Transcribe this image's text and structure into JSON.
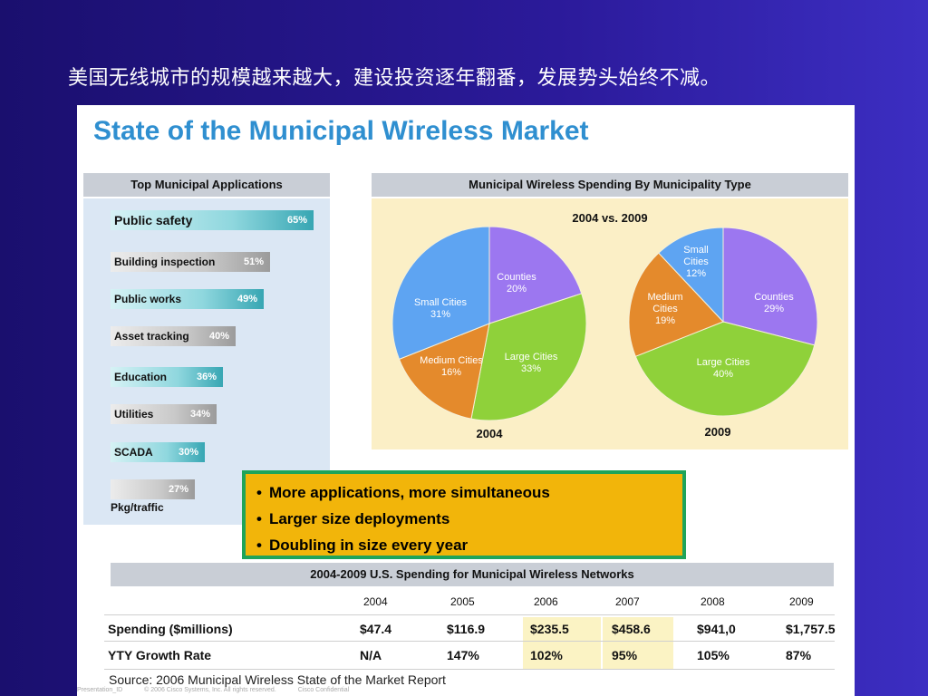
{
  "caption": "美国无线城市的规模越来越大，建设投资逐年翻番，发展势头始终不减。",
  "title": "State of the Municipal Wireless Market",
  "apps": {
    "heading": "Top Municipal Applications",
    "items": [
      {
        "label": "Public safety",
        "pct": "65%",
        "value": 65,
        "color": "teal"
      },
      {
        "label": "Building inspection",
        "pct": "51%",
        "value": 51,
        "color": "gray"
      },
      {
        "label": "Public works",
        "pct": "49%",
        "value": 49,
        "color": "teal"
      },
      {
        "label": "Asset tracking",
        "pct": "40%",
        "value": 40,
        "color": "gray"
      },
      {
        "label": "Education",
        "pct": "36%",
        "value": 36,
        "color": "teal"
      },
      {
        "label": "Utilities",
        "pct": "34%",
        "value": 34,
        "color": "gray"
      },
      {
        "label": "SCADA",
        "pct": "30%",
        "value": 30,
        "color": "teal"
      },
      {
        "label": "Pkg/traffic",
        "pct": "27%",
        "value": 27,
        "color": "gray"
      }
    ]
  },
  "pies": {
    "heading": "Municipal Wireless Spending By Municipality Type",
    "subtitle": "2004 vs. 2009"
  },
  "callout": [
    "More applications, more simultaneous",
    "Larger size deployments",
    "Doubling in size every year"
  ],
  "table": {
    "heading": "2004-2009 U.S. Spending for Municipal Wireless Networks",
    "years": [
      "2004",
      "2005",
      "2006",
      "2007",
      "2008",
      "2009"
    ],
    "rows": [
      {
        "label": "Spending ($millions)",
        "values": [
          "$47.4",
          "$116.9",
          "$235.5",
          "$458.6",
          "$941,0",
          "$1,757.5"
        ]
      },
      {
        "label": "YTY Growth Rate",
        "values": [
          "N/A",
          "147%",
          "102%",
          "95%",
          "105%",
          "87%"
        ]
      }
    ]
  },
  "source": "Source: 2006 Municipal Wireless State of the Market Report",
  "footer": [
    "Presentation_ID",
    "© 2006 Cisco Systems, Inc. All rights reserved.",
    "Cisco Confidential"
  ],
  "colors": {
    "accent_title": "#2f8fd0",
    "slice_counties": "#9c77f0",
    "slice_large": "#8fd13a",
    "slice_medium": "#e48a2c",
    "slice_small": "#5ea4f2",
    "callout_bg": "#f2b50a",
    "callout_border": "#1fa45a"
  },
  "chart_data": [
    {
      "type": "bar",
      "title": "Top Municipal Applications",
      "categories": [
        "Public safety",
        "Building inspection",
        "Public works",
        "Asset tracking",
        "Education",
        "Utilities",
        "SCADA",
        "Pkg/traffic"
      ],
      "values": [
        65,
        51,
        49,
        40,
        36,
        34,
        30,
        27
      ],
      "unit": "%"
    },
    {
      "type": "pie",
      "title": "2004",
      "slices": [
        {
          "name": "Counties",
          "value": 20,
          "color": "#9c77f0"
        },
        {
          "name": "Large Cities",
          "value": 33,
          "color": "#8fd13a"
        },
        {
          "name": "Medium Cities",
          "value": 16,
          "color": "#e48a2c"
        },
        {
          "name": "Small Cities",
          "value": 31,
          "color": "#5ea4f2"
        }
      ]
    },
    {
      "type": "pie",
      "title": "2009",
      "slices": [
        {
          "name": "Counties",
          "value": 29,
          "color": "#9c77f0"
        },
        {
          "name": "Large Cities",
          "value": 40,
          "color": "#8fd13a"
        },
        {
          "name": "Medium Cities",
          "value": 19,
          "color": "#e48a2c"
        },
        {
          "name": "Small Cities",
          "value": 12,
          "color": "#5ea4f2"
        }
      ]
    },
    {
      "type": "table",
      "title": "2004-2009 U.S. Spending for Municipal Wireless Networks",
      "x": [
        "2004",
        "2005",
        "2006",
        "2007",
        "2008",
        "2009"
      ],
      "series": [
        {
          "name": "Spending ($millions)",
          "values": [
            47.4,
            116.9,
            235.5,
            458.6,
            941.0,
            1757.5
          ]
        },
        {
          "name": "YTY Growth Rate",
          "values": [
            null,
            147,
            102,
            95,
            105,
            87
          ],
          "unit": "%"
        }
      ]
    }
  ]
}
